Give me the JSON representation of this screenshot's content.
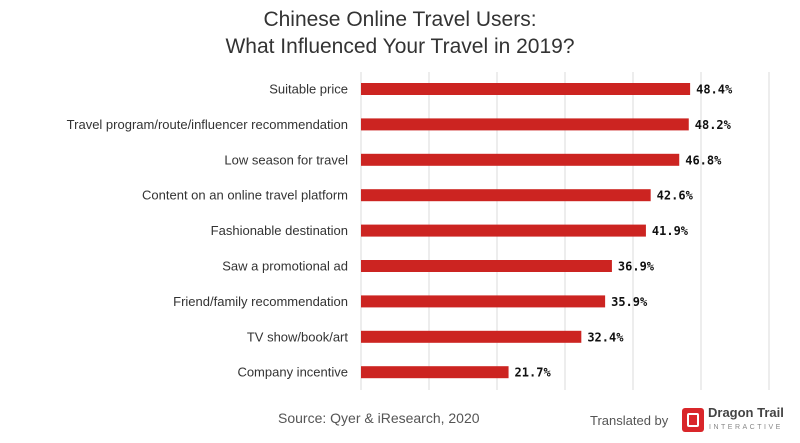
{
  "chart_data": {
    "type": "bar",
    "orientation": "horizontal",
    "title": "Chinese Online Travel Users:\nWhat Influenced Your Travel in 2019?",
    "title_lines": [
      "Chinese Online Travel Users:",
      "What Influenced Your Travel in 2019?"
    ],
    "categories": [
      "Suitable price",
      "Travel program/route/influencer recommendation",
      "Low season for travel",
      "Content on an online travel platform",
      "Fashionable destination",
      "Saw a promotional ad",
      "Friend/family recommendation",
      "TV show/book/art",
      "Company incentive"
    ],
    "values": [
      48.4,
      48.2,
      46.8,
      42.6,
      41.9,
      36.9,
      35.9,
      32.4,
      21.7
    ],
    "labels": [
      "48.4%",
      "48.2%",
      "46.8%",
      "42.6%",
      "41.9%",
      "36.9%",
      "35.9%",
      "32.4%",
      "21.7%"
    ],
    "xlim": [
      0,
      60
    ],
    "grid": true,
    "grid_step": 10,
    "bar_color": "#cc2421"
  },
  "footer": {
    "source": "Source: Qyer & iResearch, 2020",
    "translated_by": "Translated by",
    "brand": "Dragon Trail",
    "brand_sub": "INTERACTIVE"
  }
}
